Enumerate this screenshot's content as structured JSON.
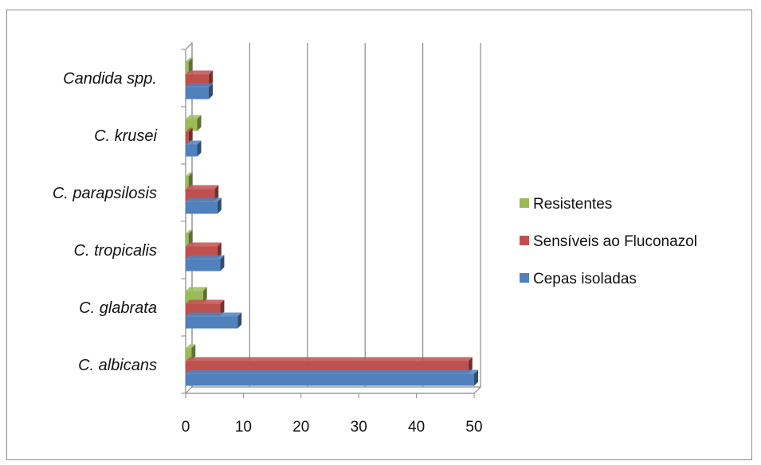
{
  "chart_data": {
    "type": "bar",
    "orientation": "horizontal",
    "categories": [
      "C. albicans",
      "C. glabrata",
      "C. tropicalis",
      "C. parapsilosis",
      "C. krusei",
      "Candida spp."
    ],
    "series": [
      {
        "name": "Cepas isoladas",
        "color": "#4F81BD",
        "values": [
          50,
          9,
          6,
          5.5,
          2,
          4
        ]
      },
      {
        "name": "Sensíveis ao Fluconazol",
        "color": "#C0504D",
        "values": [
          49,
          6,
          5.5,
          5,
          0.5,
          4
        ]
      },
      {
        "name": "Resistentes",
        "color": "#9BBB59",
        "values": [
          1,
          3,
          0.5,
          0.5,
          2,
          0.5
        ]
      }
    ],
    "xlim": [
      0,
      50
    ],
    "xticks": [
      0,
      10,
      20,
      30,
      40,
      50
    ],
    "grid": "vertical",
    "legend_position": "right",
    "legend_order": [
      "Resistentes",
      "Sensíveis ao Fluconazol",
      "Cepas isoladas"
    ]
  }
}
